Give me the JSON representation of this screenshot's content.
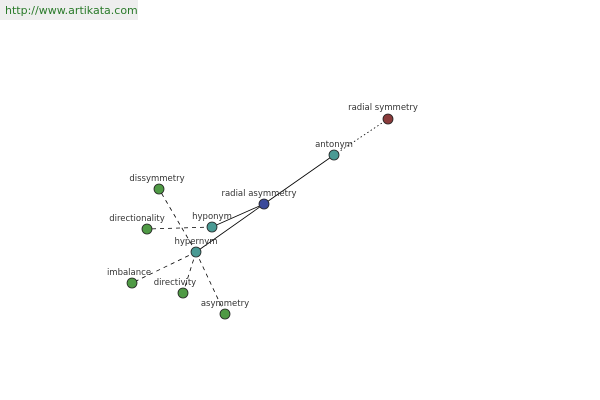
{
  "header": {
    "url": "http://www.artikata.com"
  },
  "nodes": [
    {
      "label": "radial symmetry"
    },
    {
      "label": "antonym"
    },
    {
      "label": "radial asymmetry"
    },
    {
      "label": "hyponym"
    },
    {
      "label": "hypernym"
    },
    {
      "label": "dissymmetry"
    },
    {
      "label": "directionality"
    },
    {
      "label": "imbalance"
    },
    {
      "label": "directivity"
    },
    {
      "label": "asymmetry"
    }
  ]
}
